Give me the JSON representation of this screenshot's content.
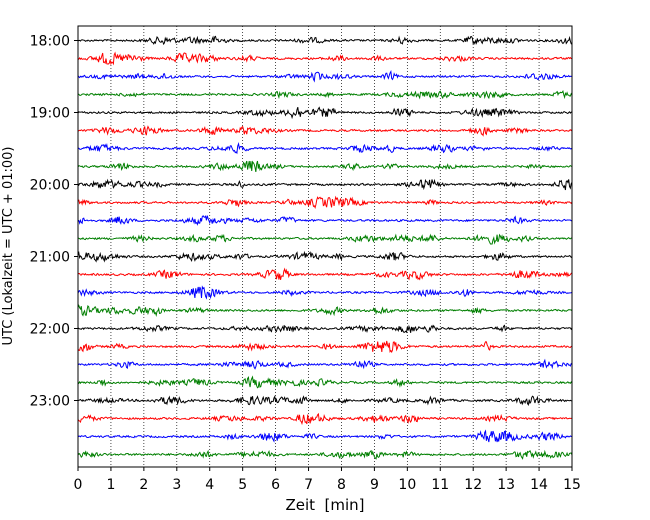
{
  "chart_data": {
    "type": "line",
    "title": "",
    "xlabel": "Zeit  [min]",
    "ylabel": "UTC (Lokalzeit = UTC + 01:00)",
    "xlim": [
      0,
      15
    ],
    "x_ticks": [
      0,
      1,
      2,
      3,
      4,
      5,
      6,
      7,
      8,
      9,
      10,
      11,
      12,
      13,
      14,
      15
    ],
    "x_grid": "dotted",
    "trace_interval_minutes": 15,
    "start_time": "18:00",
    "end_time": "23:45",
    "y_tick_labels": [
      "18:00",
      "19:00",
      "20:00",
      "21:00",
      "22:00",
      "23:00"
    ],
    "trace_colors": [
      "#000000",
      "#ff0000",
      "#0000ff",
      "#007f00"
    ],
    "trace_count": 24,
    "series": []
  }
}
